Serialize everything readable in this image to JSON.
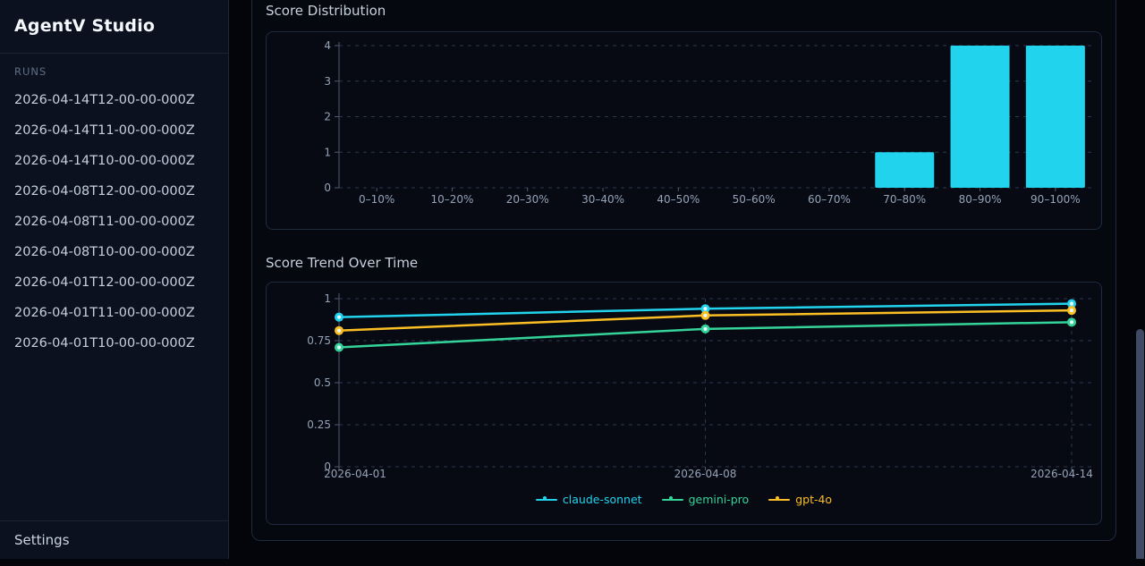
{
  "app": {
    "title": "AgentV Studio"
  },
  "sidebar": {
    "section_label": "RUNS",
    "runs": [
      "2026-04-14T12-00-00-000Z",
      "2026-04-14T11-00-00-000Z",
      "2026-04-14T10-00-00-000Z",
      "2026-04-08T12-00-00-000Z",
      "2026-04-08T11-00-00-000Z",
      "2026-04-08T10-00-00-000Z",
      "2026-04-01T12-00-00-000Z",
      "2026-04-01T11-00-00-000Z",
      "2026-04-01T10-00-00-000Z"
    ],
    "settings_label": "Settings"
  },
  "colors": {
    "accent_cyan": "#22d3ee",
    "accent_green": "#34d399",
    "accent_yellow": "#fbbf24",
    "panel_background": "#070a13",
    "sidebar_background": "#0b111e"
  },
  "chart_data": [
    {
      "type": "bar",
      "title": "Score Distribution",
      "categories": [
        "0–10%",
        "10–20%",
        "20–30%",
        "30–40%",
        "40–50%",
        "50–60%",
        "60–70%",
        "70–80%",
        "80–90%",
        "90–100%"
      ],
      "values": [
        0,
        0,
        0,
        0,
        0,
        0,
        0,
        1,
        4,
        4
      ],
      "xlabel": "",
      "ylabel": "",
      "ylim": [
        0,
        4
      ],
      "yticks": [
        0,
        1,
        2,
        3,
        4
      ],
      "bar_color": "#22d3ee",
      "grid": "dashed-horizontal",
      "legend_position": "none"
    },
    {
      "type": "line",
      "title": "Score Trend Over Time",
      "x": [
        "2026-04-01",
        "2026-04-08",
        "2026-04-14"
      ],
      "series": [
        {
          "name": "claude-sonnet",
          "color": "#22d3ee",
          "values": [
            0.89,
            0.94,
            0.97
          ]
        },
        {
          "name": "gemini-pro",
          "color": "#34d399",
          "values": [
            0.71,
            0.82,
            0.86
          ]
        },
        {
          "name": "gpt-4o",
          "color": "#fbbf24",
          "values": [
            0.81,
            0.9,
            0.93
          ]
        }
      ],
      "ylim": [
        0,
        1
      ],
      "yticks": [
        0,
        0.25,
        0.5,
        0.75,
        1
      ],
      "grid": "dashed",
      "legend_position": "bottom"
    }
  ]
}
